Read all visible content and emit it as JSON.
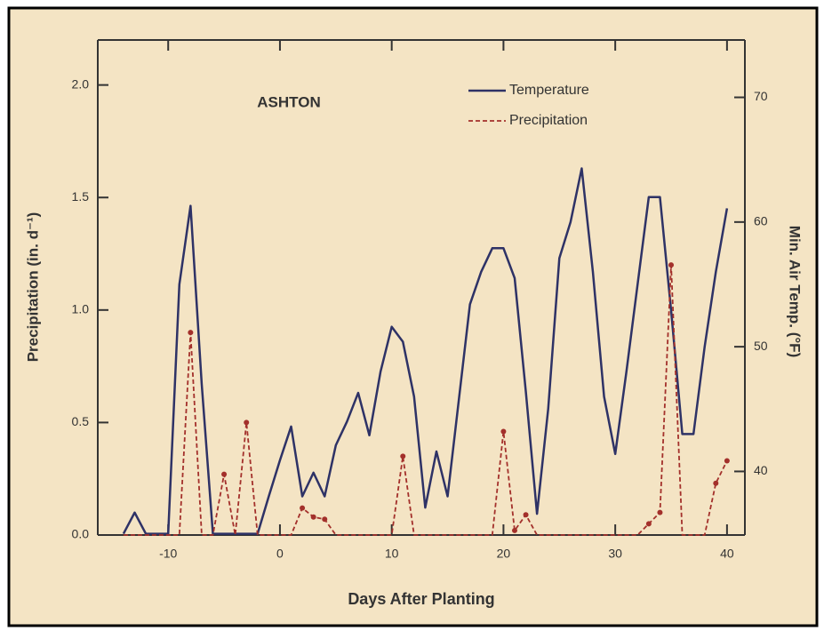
{
  "chart_data": {
    "type": "line",
    "annotation": "ASHTON",
    "xlabel": "Days After Planting",
    "ylabel": "Precipitation (in. d⁻¹)",
    "y2label": "Min. Air Temp. (°F)",
    "x": [
      -14,
      -13,
      -12,
      -11,
      -10,
      -9,
      -8,
      -7,
      -6,
      -5,
      -4,
      -3,
      -2,
      -1,
      0,
      1,
      2,
      3,
      4,
      5,
      6,
      7,
      8,
      9,
      10,
      11,
      12,
      13,
      14,
      15,
      16,
      17,
      18,
      19,
      20,
      21,
      22,
      23,
      24,
      25,
      26,
      27,
      28,
      29,
      30,
      31,
      32,
      33,
      34,
      35,
      36,
      37,
      38,
      39,
      40
    ],
    "series": [
      {
        "name": "Temperature",
        "color": "#2e3266",
        "dash": false,
        "axis": "y2",
        "values": [
          35,
          36.7,
          35,
          35,
          35,
          55,
          61.3,
          47,
          35,
          35,
          35,
          35,
          35,
          38,
          40.9,
          43.6,
          38,
          39.9,
          38,
          42.1,
          44,
          46.3,
          42.9,
          48,
          51.6,
          50.4,
          46,
          37.1,
          41.6,
          38,
          45.7,
          53.4,
          56,
          57.9,
          57.9,
          55.5,
          46.4,
          36.6,
          45,
          57.1,
          60,
          64.3,
          56,
          46,
          41.4,
          48,
          55,
          62,
          62,
          52.9,
          43,
          43,
          50,
          56,
          61.1
        ]
      },
      {
        "name": "Precipitation",
        "color": "#a3302b",
        "dash": true,
        "axis": "y",
        "values": [
          0,
          0,
          0,
          0,
          0,
          0,
          0.9,
          0,
          0,
          0.27,
          0,
          0.5,
          0,
          0,
          0,
          0,
          0.12,
          0.08,
          0.07,
          0,
          0,
          0,
          0,
          0,
          0,
          0.35,
          0,
          0,
          0,
          0,
          0,
          0,
          0,
          0,
          0.46,
          0.02,
          0.09,
          0,
          0,
          0,
          0,
          0,
          0,
          0,
          0,
          0,
          0,
          0.05,
          0.1,
          1.2,
          0,
          0,
          0,
          0.23,
          0.33
        ]
      }
    ],
    "xlim": [
      -16.3,
      41.6
    ],
    "xticks": [
      -10,
      0,
      10,
      20,
      30,
      40
    ],
    "ylim": [
      0,
      2.2
    ],
    "yticks": [
      {
        "value": 0,
        "label": "0.0"
      },
      0.5,
      {
        "value": 1,
        "label": "1.0"
      },
      1.5,
      {
        "value": 2,
        "label": "2.0"
      }
    ],
    "y2lim": [
      34.9,
      74.6
    ],
    "y2ticks": [
      40,
      50,
      60,
      70
    ],
    "legend": "upper right"
  }
}
